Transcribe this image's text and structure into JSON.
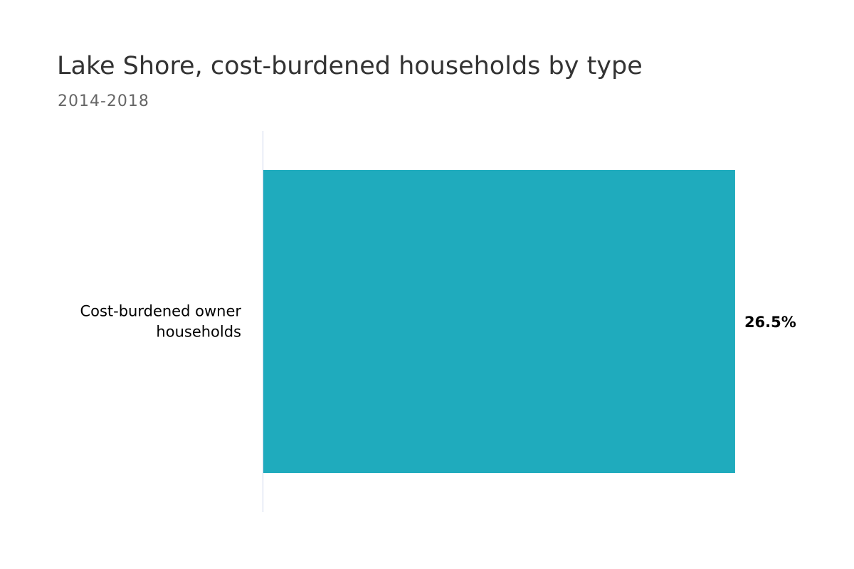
{
  "chart_data": {
    "type": "bar",
    "orientation": "horizontal",
    "title": "Lake Shore, cost-burdened households by type",
    "subtitle": "2014-2018",
    "categories": [
      [
        "Cost-burdened owner",
        "households"
      ]
    ],
    "series": [
      {
        "values": [
          26.5
        ],
        "labels": [
          "26.5%"
        ],
        "color": "#1fabbd"
      }
    ],
    "xlim": [
      0,
      29.5
    ],
    "xlabel": "",
    "ylabel": "",
    "grid": false,
    "legend": "none",
    "axis_color": "#ccd6eb"
  }
}
